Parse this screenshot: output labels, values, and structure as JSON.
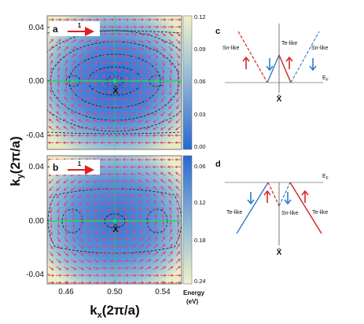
{
  "figure": {
    "y_axis_label": "k",
    "y_axis_label_sub": "y",
    "y_axis_unit": "(2π/a)",
    "x_axis_label": "k",
    "x_axis_label_sub": "x",
    "x_axis_unit": "(2π/a)",
    "x_ticks": [
      "0.46",
      "0.50",
      "0.54"
    ],
    "y_ticks": [
      "0.04",
      "0.00",
      "-0.04"
    ],
    "colorbar_title": "Energy",
    "colorbar_unit": "(eV)",
    "panel_a": {
      "label": "a",
      "scale_value": "1",
      "point_label": "X̄",
      "colorbar_ticks": [
        "0.12",
        "0.09",
        "0.06",
        "0.03",
        "0.00"
      ]
    },
    "panel_b": {
      "label": "b",
      "scale_value": "1",
      "point_label": "X̄",
      "colorbar_ticks": [
        "0.06",
        "0.12",
        "0.18",
        "0.24"
      ]
    },
    "panel_c": {
      "label": "c",
      "sn_left": "Sn-like",
      "te_center": "Te-like",
      "sn_right": "Sn-like",
      "fermi": "E",
      "fermi_sub": "F",
      "point_label": "X̄"
    },
    "panel_d": {
      "label": "d",
      "fermi": "E",
      "fermi_sub": "F",
      "te_left": "Te-like",
      "sn_center": "Sn-like",
      "te_right": "Te-like",
      "point_label": "X̄"
    }
  },
  "colors": {
    "map_low": "#2f6fd6",
    "map_mid": "#7fb0d8",
    "map_high": "#ecefc3",
    "spin_arrow": "#e0457e",
    "zero_line": "#2ed25a",
    "contour": "#111111",
    "te_line": "#3a7fc9",
    "sn_line": "#d42a2a",
    "arrow_red": "#d42a2a",
    "arrow_blue": "#2a7fc9",
    "scale_arrow": "#e02020"
  }
}
